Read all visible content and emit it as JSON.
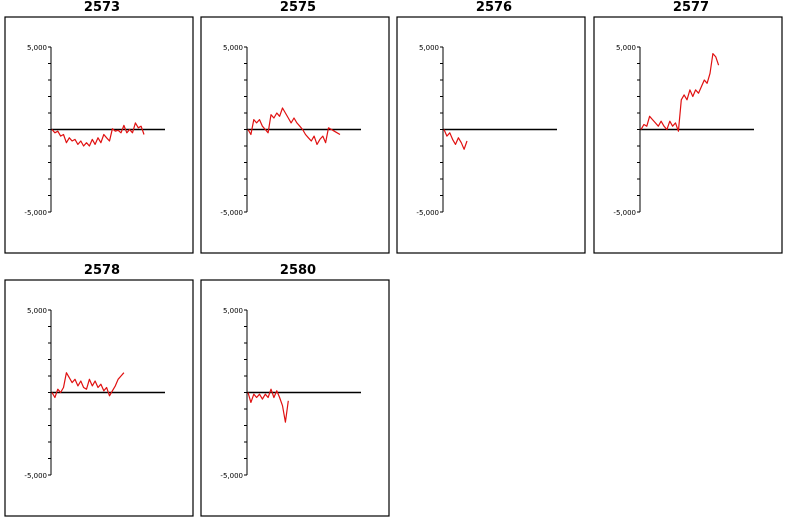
{
  "chart_data": [
    {
      "type": "line",
      "title": "2573",
      "ylim": [
        -5000,
        5000
      ],
      "ytick_labels": [
        "5,000",
        "-5,000"
      ],
      "y_minor_step": 1000,
      "series_color": "#e01010",
      "zero_line_color": "#000000",
      "x": [
        0,
        1,
        2,
        3,
        4,
        5,
        6,
        7,
        8,
        9,
        10,
        11,
        12,
        13,
        14,
        15,
        16,
        17,
        18,
        19,
        20,
        21,
        22,
        23,
        24,
        25,
        26,
        27,
        28,
        29,
        30,
        31,
        32
      ],
      "y": [
        0,
        -200,
        -100,
        -400,
        -300,
        -800,
        -500,
        -700,
        -600,
        -900,
        -700,
        -1000,
        -800,
        -1000,
        -600,
        -900,
        -500,
        -800,
        -300,
        -500,
        -700,
        50,
        -100,
        -50,
        -200,
        250,
        -200,
        0,
        -200,
        400,
        100,
        200,
        -300
      ]
    },
    {
      "type": "line",
      "title": "2575",
      "ylim": [
        -5000,
        5000
      ],
      "ytick_labels": [
        "5,000",
        "-5,000"
      ],
      "y_minor_step": 1000,
      "series_color": "#e01010",
      "zero_line_color": "#000000",
      "x": [
        0,
        1,
        2,
        3,
        4,
        5,
        6,
        7,
        8,
        9,
        10,
        11,
        12,
        13,
        14,
        15,
        16,
        17,
        18,
        19,
        20,
        21,
        22,
        23,
        24,
        25,
        26,
        27,
        28,
        29,
        30,
        31,
        32
      ],
      "y": [
        0,
        -300,
        600,
        400,
        600,
        200,
        0,
        -200,
        900,
        700,
        1000,
        800,
        1300,
        1000,
        700,
        400,
        700,
        400,
        200,
        0,
        -300,
        -500,
        -700,
        -400,
        -900,
        -600,
        -400,
        -800,
        100,
        0,
        -100,
        -200,
        -300
      ]
    },
    {
      "type": "line",
      "title": "2576",
      "ylim": [
        -5000,
        5000
      ],
      "ytick_labels": [
        "5,000",
        "-5,000"
      ],
      "y_minor_step": 1000,
      "series_color": "#e01010",
      "zero_line_color": "#000000",
      "x": [
        0,
        1,
        2,
        3,
        4,
        5,
        6,
        7,
        8
      ],
      "y": [
        0,
        -400,
        -200,
        -600,
        -900,
        -500,
        -800,
        -1200,
        -700
      ]
    },
    {
      "type": "line",
      "title": "2577",
      "ylim": [
        -5000,
        5000
      ],
      "ytick_labels": [
        "5,000",
        "-5,000"
      ],
      "y_minor_step": 1000,
      "series_color": "#e01010",
      "zero_line_color": "#000000",
      "x": [
        0,
        1,
        2,
        3,
        4,
        5,
        6,
        7,
        8,
        9,
        10,
        11,
        12,
        13,
        14,
        15,
        16,
        17,
        18,
        19,
        20,
        21,
        22,
        23,
        24,
        25,
        26,
        27
      ],
      "y": [
        0,
        300,
        200,
        800,
        600,
        400,
        200,
        500,
        200,
        0,
        500,
        200,
        400,
        -100,
        1800,
        2100,
        1800,
        2400,
        2000,
        2400,
        2200,
        2600,
        3000,
        2800,
        3400,
        4600,
        4400,
        3900
      ]
    },
    {
      "type": "line",
      "title": "2578",
      "ylim": [
        -5000,
        5000
      ],
      "ytick_labels": [
        "5,000",
        "-5,000"
      ],
      "y_minor_step": 1000,
      "series_color": "#e01010",
      "zero_line_color": "#000000",
      "x": [
        0,
        1,
        2,
        3,
        4,
        5,
        6,
        7,
        8,
        9,
        10,
        11,
        12,
        13,
        14,
        15,
        16,
        17,
        18,
        19,
        20,
        21,
        22,
        23,
        24,
        25
      ],
      "y": [
        0,
        -300,
        200,
        0,
        300,
        1200,
        900,
        600,
        800,
        400,
        700,
        300,
        200,
        800,
        400,
        700,
        300,
        500,
        100,
        300,
        -200,
        100,
        400,
        800,
        1000,
        1200
      ]
    },
    {
      "type": "line",
      "title": "2580",
      "ylim": [
        -5000,
        5000
      ],
      "ytick_labels": [
        "5,000",
        "-5,000"
      ],
      "y_minor_step": 1000,
      "series_color": "#e01010",
      "zero_line_color": "#000000",
      "x": [
        0,
        1,
        2,
        3,
        4,
        5,
        6,
        7,
        8,
        9,
        10,
        11,
        12,
        13,
        14
      ],
      "y": [
        0,
        -600,
        -100,
        -300,
        -100,
        -400,
        -100,
        -300,
        200,
        -300,
        100,
        -300,
        -800,
        -1800,
        -500
      ]
    }
  ]
}
